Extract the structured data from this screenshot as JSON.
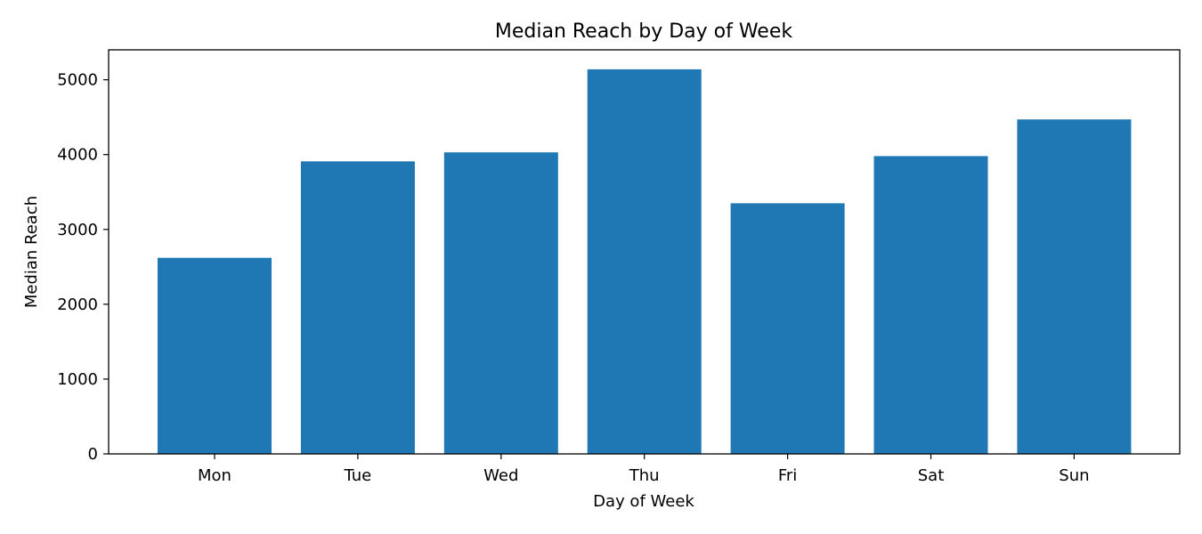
{
  "chart_data": {
    "type": "bar",
    "title": "Median Reach by Day of Week",
    "xlabel": "Day of Week",
    "ylabel": "Median Reach",
    "categories": [
      "Mon",
      "Tue",
      "Wed",
      "Thu",
      "Fri",
      "Sat",
      "Sun"
    ],
    "values": [
      2620,
      3910,
      4030,
      5140,
      3350,
      3980,
      4470
    ],
    "ylim": [
      0,
      5400
    ],
    "yticks": [
      0,
      1000,
      2000,
      3000,
      4000,
      5000
    ],
    "grid": false,
    "legend": "none",
    "bar_color": "#1f77b4"
  }
}
